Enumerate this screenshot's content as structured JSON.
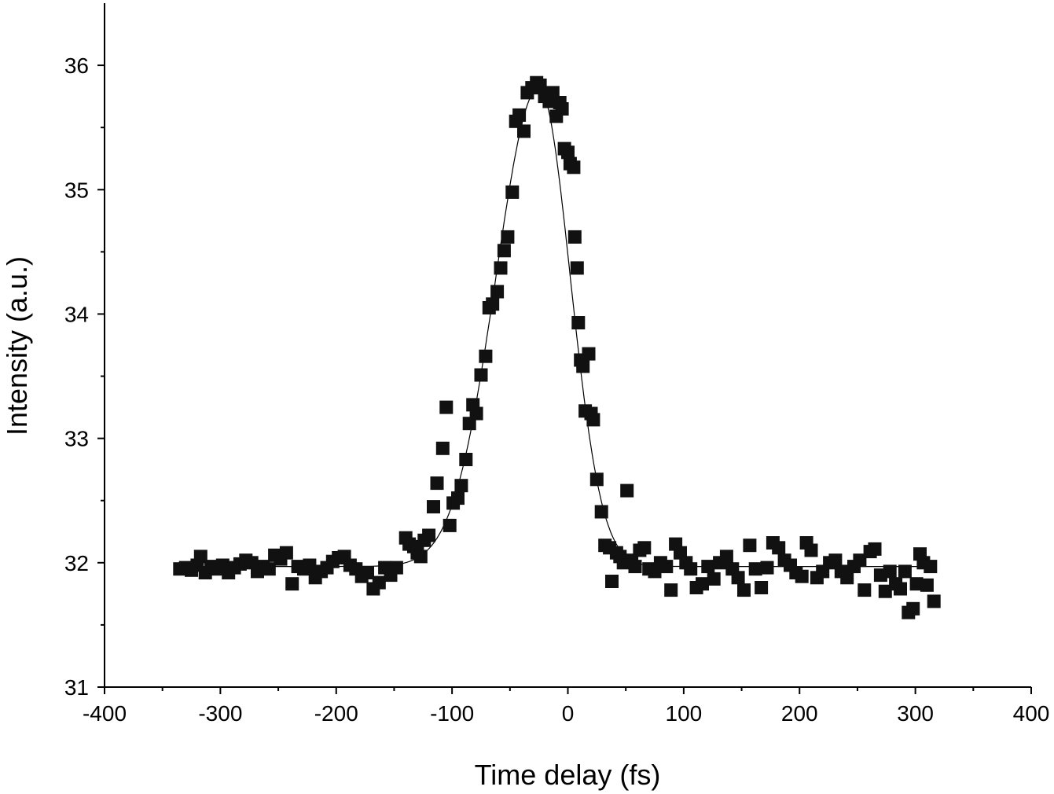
{
  "chart_data": {
    "type": "scatter",
    "title": "",
    "xlabel": "Time delay (fs)",
    "ylabel": "Intensity (a.u.)",
    "xlim": [
      -400,
      400
    ],
    "ylim": [
      31,
      36.5
    ],
    "x_ticks": [
      -400,
      -300,
      -200,
      -100,
      0,
      100,
      200,
      300,
      400
    ],
    "y_ticks": [
      31,
      32,
      33,
      34,
      35,
      36
    ],
    "x_tick_labels": [
      "-400",
      "-300",
      "-200",
      "-100",
      "0",
      "100",
      "200",
      "300",
      "400"
    ],
    "y_tick_labels": [
      "31",
      "32",
      "33",
      "34",
      "35",
      "36"
    ],
    "grid": false,
    "legend": "none",
    "marker_color": "#111111",
    "fit_color": "#000000",
    "series": [
      {
        "kind": "points",
        "points": [
          [
            -335,
            31.95
          ],
          [
            -330,
            31.96
          ],
          [
            -325,
            31.94
          ],
          [
            -320,
            31.98
          ],
          [
            -317,
            32.05
          ],
          [
            -313,
            31.92
          ],
          [
            -308,
            31.97
          ],
          [
            -303,
            31.95
          ],
          [
            -298,
            31.98
          ],
          [
            -293,
            31.92
          ],
          [
            -288,
            31.96
          ],
          [
            -283,
            31.99
          ],
          [
            -278,
            32.02
          ],
          [
            -273,
            32.0
          ],
          [
            -268,
            31.93
          ],
          [
            -263,
            31.97
          ],
          [
            -258,
            31.95
          ],
          [
            -253,
            32.06
          ],
          [
            -248,
            32.03
          ],
          [
            -243,
            32.08
          ],
          [
            -238,
            31.83
          ],
          [
            -233,
            31.97
          ],
          [
            -228,
            31.95
          ],
          [
            -223,
            31.98
          ],
          [
            -218,
            31.88
          ],
          [
            -213,
            31.93
          ],
          [
            -208,
            31.96
          ],
          [
            -203,
            32.01
          ],
          [
            -198,
            32.04
          ],
          [
            -193,
            32.05
          ],
          [
            -188,
            31.98
          ],
          [
            -183,
            31.95
          ],
          [
            -178,
            31.89
          ],
          [
            -173,
            31.92
          ],
          [
            -168,
            31.79
          ],
          [
            -163,
            31.84
          ],
          [
            -158,
            31.96
          ],
          [
            -153,
            31.9
          ],
          [
            -148,
            31.96
          ],
          [
            -140,
            32.2
          ],
          [
            -137,
            32.15
          ],
          [
            -133,
            32.13
          ],
          [
            -130,
            32.08
          ],
          [
            -127,
            32.05
          ],
          [
            -124,
            32.18
          ],
          [
            -120,
            32.22
          ],
          [
            -116,
            32.45
          ],
          [
            -113,
            32.64
          ],
          [
            -108,
            32.92
          ],
          [
            -105,
            33.25
          ],
          [
            -102,
            32.3
          ],
          [
            -99,
            32.48
          ],
          [
            -95,
            32.52
          ],
          [
            -92,
            32.62
          ],
          [
            -88,
            32.83
          ],
          [
            -85,
            33.12
          ],
          [
            -82,
            33.27
          ],
          [
            -79,
            33.2
          ],
          [
            -75,
            33.51
          ],
          [
            -71,
            33.66
          ],
          [
            -68,
            34.05
          ],
          [
            -65,
            34.08
          ],
          [
            -61,
            34.18
          ],
          [
            -58,
            34.37
          ],
          [
            -55,
            34.51
          ],
          [
            -52,
            34.62
          ],
          [
            -48,
            34.98
          ],
          [
            -45,
            35.55
          ],
          [
            -42,
            35.6
          ],
          [
            -38,
            35.47
          ],
          [
            -35,
            35.78
          ],
          [
            -31,
            35.82
          ],
          [
            -27,
            35.86
          ],
          [
            -24,
            35.84
          ],
          [
            -20,
            35.75
          ],
          [
            -16,
            35.71
          ],
          [
            -13,
            35.78
          ],
          [
            -10,
            35.59
          ],
          [
            -7,
            35.7
          ],
          [
            -5,
            35.65
          ],
          [
            -3,
            35.33
          ],
          [
            0,
            35.3
          ],
          [
            2,
            35.21
          ],
          [
            5,
            35.18
          ],
          [
            6,
            34.62
          ],
          [
            8,
            34.37
          ],
          [
            9,
            33.93
          ],
          [
            11,
            33.63
          ],
          [
            13,
            33.58
          ],
          [
            15,
            33.22
          ],
          [
            18,
            33.68
          ],
          [
            20,
            33.2
          ],
          [
            22,
            33.15
          ],
          [
            25,
            32.67
          ],
          [
            29,
            32.41
          ],
          [
            32,
            32.14
          ],
          [
            36,
            32.12
          ],
          [
            38,
            31.85
          ],
          [
            42,
            32.08
          ],
          [
            45,
            32.05
          ],
          [
            48,
            32.0
          ],
          [
            51,
            32.58
          ],
          [
            55,
            32.02
          ],
          [
            58,
            31.97
          ],
          [
            62,
            32.1
          ],
          [
            66,
            32.12
          ],
          [
            70,
            31.95
          ],
          [
            75,
            31.93
          ],
          [
            80,
            32.0
          ],
          [
            85,
            31.97
          ],
          [
            89,
            31.78
          ],
          [
            93,
            32.15
          ],
          [
            97,
            32.08
          ],
          [
            102,
            32.0
          ],
          [
            106,
            31.95
          ],
          [
            111,
            31.8
          ],
          [
            116,
            31.83
          ],
          [
            121,
            31.97
          ],
          [
            126,
            31.87
          ],
          [
            131,
            32.0
          ],
          [
            137,
            32.05
          ],
          [
            142,
            31.95
          ],
          [
            147,
            31.88
          ],
          [
            152,
            31.78
          ],
          [
            157,
            32.14
          ],
          [
            162,
            31.95
          ],
          [
            167,
            31.8
          ],
          [
            172,
            31.96
          ],
          [
            177,
            32.16
          ],
          [
            182,
            32.12
          ],
          [
            187,
            32.02
          ],
          [
            192,
            31.98
          ],
          [
            197,
            31.92
          ],
          [
            202,
            31.89
          ],
          [
            206,
            32.16
          ],
          [
            210,
            32.1
          ],
          [
            215,
            31.88
          ],
          [
            220,
            31.93
          ],
          [
            226,
            32.0
          ],
          [
            231,
            32.02
          ],
          [
            236,
            31.93
          ],
          [
            241,
            31.88
          ],
          [
            247,
            31.97
          ],
          [
            252,
            32.02
          ],
          [
            256,
            31.78
          ],
          [
            261,
            32.09
          ],
          [
            265,
            32.11
          ],
          [
            270,
            31.9
          ],
          [
            274,
            31.77
          ],
          [
            278,
            31.93
          ],
          [
            283,
            31.83
          ],
          [
            287,
            31.79
          ],
          [
            291,
            31.93
          ],
          [
            294,
            31.6
          ],
          [
            298,
            31.63
          ],
          [
            301,
            31.83
          ],
          [
            304,
            32.07
          ],
          [
            307,
            32.0
          ],
          [
            310,
            31.82
          ],
          [
            313,
            31.97
          ],
          [
            316,
            31.69
          ]
        ]
      },
      {
        "kind": "fit",
        "x_range": [
          -330,
          312
        ],
        "baseline": 31.97,
        "peak_x": -25,
        "amplitude": 3.85,
        "width_left": 37,
        "width_right": 27
      }
    ]
  }
}
